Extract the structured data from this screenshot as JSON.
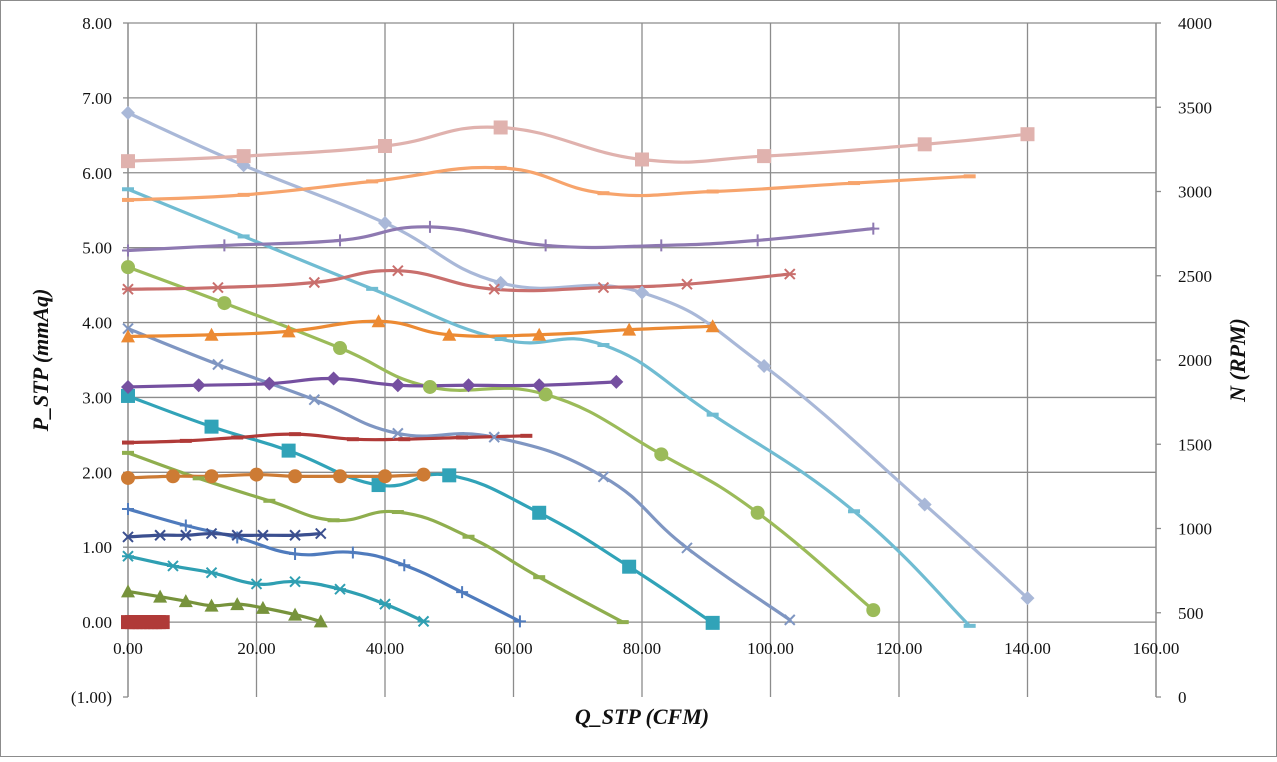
{
  "chart_data": {
    "type": "line",
    "xlabel": "Q_STP (CFM)",
    "ylabel": "P_STP (mmAq)",
    "y2label": "N (RPM)",
    "xlim": [
      0,
      160
    ],
    "ylim": [
      -1,
      8
    ],
    "y2lim": [
      0,
      4000
    ],
    "grid": true,
    "legend": "none",
    "x_ticks": [
      "0.00",
      "20.00",
      "40.00",
      "60.00",
      "80.00",
      "100.00",
      "120.00",
      "140.00",
      "160.00"
    ],
    "y_ticks": [
      "(1.00)",
      "0.00",
      "1.00",
      "2.00",
      "3.00",
      "4.00",
      "5.00",
      "6.00",
      "7.00",
      "8.00"
    ],
    "y2_ticks": [
      "0",
      "500",
      "1000",
      "1500",
      "2000",
      "2500",
      "3000",
      "3500",
      "4000"
    ],
    "series": [
      {
        "axis": "left",
        "marker": "diamond",
        "color": "#a9b8d8",
        "x": [
          0,
          18,
          40,
          58,
          80,
          99,
          124,
          140
        ],
        "y": [
          6.8,
          6.1,
          5.33,
          4.53,
          4.4,
          3.42,
          1.57,
          0.32
        ]
      },
      {
        "axis": "left",
        "marker": "dash",
        "color": "#70bcd2",
        "x": [
          0,
          18,
          38,
          58,
          74,
          91,
          113,
          131
        ],
        "y": [
          5.78,
          5.15,
          4.45,
          3.78,
          3.7,
          2.77,
          1.48,
          -0.05
        ]
      },
      {
        "axis": "left",
        "marker": "circle",
        "color": "#9bbb59",
        "x": [
          0,
          15,
          33,
          47,
          65,
          83,
          98,
          116
        ],
        "y": [
          4.74,
          4.26,
          3.66,
          3.14,
          3.04,
          2.24,
          1.46,
          0.16
        ]
      },
      {
        "axis": "left",
        "marker": "x",
        "color": "#7f96c2",
        "x": [
          0,
          14,
          29,
          42,
          57,
          74,
          87,
          103
        ],
        "y": [
          3.92,
          3.44,
          2.97,
          2.52,
          2.47,
          1.94,
          0.99,
          0.03
        ]
      },
      {
        "axis": "left",
        "marker": "square",
        "color": "#31a3b8",
        "x": [
          0,
          13,
          25,
          39,
          50,
          64,
          78,
          91
        ],
        "y": [
          3.02,
          2.61,
          2.29,
          1.83,
          1.96,
          1.46,
          0.74,
          -0.01
        ]
      },
      {
        "axis": "left",
        "marker": "dash",
        "color": "#8fae4e",
        "x": [
          0,
          11,
          22,
          32,
          42,
          53,
          64,
          77
        ],
        "y": [
          2.26,
          1.92,
          1.62,
          1.36,
          1.47,
          1.14,
          0.6,
          0
        ]
      },
      {
        "axis": "left",
        "marker": "plus",
        "color": "#4f7bbd",
        "x": [
          0,
          9,
          17,
          26,
          35,
          43,
          52,
          61
        ],
        "y": [
          1.51,
          1.29,
          1.13,
          0.91,
          0.93,
          0.76,
          0.4,
          0.01
        ]
      },
      {
        "axis": "left",
        "marker": "asterisk",
        "color": "#2f9fb2",
        "x": [
          0,
          7,
          13,
          20,
          26,
          33,
          40,
          46
        ],
        "y": [
          0.88,
          0.75,
          0.66,
          0.51,
          0.54,
          0.44,
          0.24,
          0.01
        ]
      },
      {
        "axis": "left",
        "marker": "triangle",
        "color": "#77933c",
        "x": [
          0,
          5,
          9,
          13,
          17,
          21,
          26,
          30
        ],
        "y": [
          0.41,
          0.34,
          0.28,
          0.22,
          0.24,
          0.19,
          0.1,
          0.01
        ]
      },
      {
        "axis": "left",
        "marker": "square",
        "color": "#b03a38",
        "x": [
          0,
          0.6,
          1.2,
          1.8,
          2.4,
          3,
          3.6,
          4.2,
          4.8,
          5.4
        ],
        "y": [
          0,
          0,
          0,
          0,
          0,
          0,
          0,
          0,
          0,
          0
        ]
      },
      {
        "axis": "right",
        "marker": "square",
        "color": "#e0b2ae",
        "x": [
          0,
          18,
          40,
          58,
          80,
          99,
          124,
          140
        ],
        "y": [
          3180,
          3210,
          3270,
          3380,
          3190,
          3210,
          3280,
          3340
        ]
      },
      {
        "axis": "right",
        "marker": "dash",
        "color": "#f7a46c",
        "x": [
          0,
          18,
          38,
          58,
          74,
          91,
          113,
          131
        ],
        "y": [
          2950,
          2980,
          3060,
          3140,
          2990,
          3000,
          3050,
          3090
        ]
      },
      {
        "axis": "right",
        "marker": "plus",
        "color": "#8e79b1",
        "x": [
          0,
          15,
          33,
          47,
          65,
          83,
          98,
          116
        ],
        "y": [
          2650,
          2680,
          2710,
          2790,
          2680,
          2680,
          2710,
          2780
        ]
      },
      {
        "axis": "right",
        "marker": "asterisk",
        "color": "#c96f6d",
        "x": [
          0,
          14,
          29,
          42,
          57,
          74,
          87,
          103
        ],
        "y": [
          2420,
          2430,
          2460,
          2530,
          2420,
          2430,
          2450,
          2510
        ]
      },
      {
        "axis": "right",
        "marker": "triangle",
        "color": "#ec8a33",
        "x": [
          0,
          13,
          25,
          39,
          50,
          64,
          78,
          91
        ],
        "y": [
          2140,
          2150,
          2170,
          2230,
          2150,
          2150,
          2180,
          2200
        ]
      },
      {
        "axis": "right",
        "marker": "diamond",
        "color": "#7550a0",
        "x": [
          0,
          11,
          22,
          32,
          42,
          53,
          64,
          76
        ],
        "y": [
          1840,
          1850,
          1860,
          1890,
          1850,
          1850,
          1850,
          1870
        ]
      },
      {
        "axis": "right",
        "marker": "dash",
        "color": "#b03a38",
        "x": [
          0,
          9,
          17,
          26,
          35,
          43,
          52,
          62
        ],
        "y": [
          1510,
          1520,
          1540,
          1560,
          1530,
          1530,
          1540,
          1550
        ]
      },
      {
        "axis": "right",
        "marker": "circle",
        "color": "#cd7b34",
        "x": [
          0,
          7,
          13,
          20,
          26,
          33,
          40,
          46
        ],
        "y": [
          1300,
          1310,
          1310,
          1320,
          1310,
          1310,
          1310,
          1320
        ]
      },
      {
        "axis": "right",
        "marker": "x",
        "color": "#3b4f8f",
        "x": [
          0,
          5,
          9,
          13,
          17,
          21,
          26,
          30
        ],
        "y": [
          950,
          960,
          960,
          970,
          960,
          960,
          960,
          970
        ]
      }
    ]
  }
}
